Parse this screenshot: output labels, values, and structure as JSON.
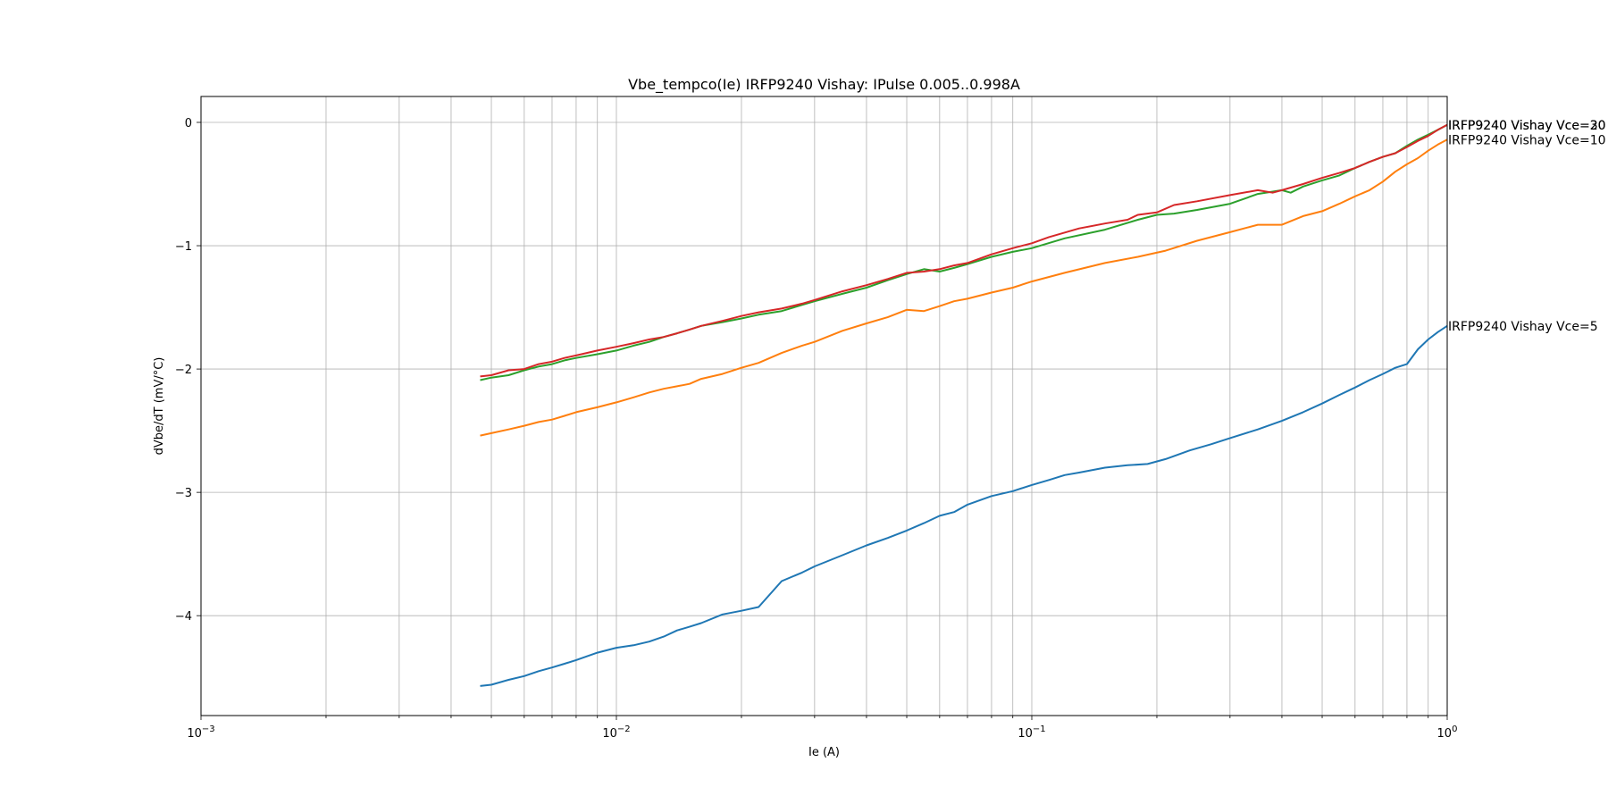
{
  "chart_data": {
    "type": "line",
    "title": "Vbe_tempco(Ie) IRFP9240 Vishay: IPulse 0.005..0.998A",
    "xlabel": "Ie (A)",
    "ylabel": "dVbe/dT (mV/°C)",
    "xscale": "log",
    "xlim": [
      0.001,
      1.0
    ],
    "ylim": [
      -4.81,
      0.21
    ],
    "xticks": [
      {
        "value": 0.001,
        "base": "10",
        "exp": "−3"
      },
      {
        "value": 0.01,
        "base": "10",
        "exp": "−2"
      },
      {
        "value": 0.1,
        "base": "10",
        "exp": "−1"
      },
      {
        "value": 1.0,
        "base": "10",
        "exp": "0"
      }
    ],
    "yticks": [
      {
        "value": 0,
        "label": "0"
      },
      {
        "value": -1,
        "label": "−1"
      },
      {
        "value": -2,
        "label": "−2"
      },
      {
        "value": -3,
        "label": "−3"
      },
      {
        "value": -4,
        "label": "−4"
      }
    ],
    "grid": true,
    "series": [
      {
        "name": "IRFP9240 Vishay Vce=5",
        "color": "#1f77b4",
        "x": [
          0.0047,
          0.005,
          0.0055,
          0.006,
          0.0065,
          0.007,
          0.0075,
          0.008,
          0.009,
          0.01,
          0.011,
          0.012,
          0.013,
          0.014,
          0.015,
          0.016,
          0.018,
          0.02,
          0.022,
          0.025,
          0.028,
          0.03,
          0.035,
          0.04,
          0.045,
          0.05,
          0.055,
          0.06,
          0.065,
          0.07,
          0.08,
          0.09,
          0.1,
          0.11,
          0.12,
          0.13,
          0.15,
          0.17,
          0.19,
          0.21,
          0.24,
          0.27,
          0.3,
          0.35,
          0.4,
          0.45,
          0.5,
          0.55,
          0.6,
          0.65,
          0.7,
          0.75,
          0.8,
          0.85,
          0.9,
          0.95,
          1.0
        ],
        "y": [
          -4.57,
          -4.56,
          -4.52,
          -4.49,
          -4.45,
          -4.42,
          -4.39,
          -4.36,
          -4.3,
          -4.26,
          -4.24,
          -4.21,
          -4.17,
          -4.12,
          -4.09,
          -4.06,
          -3.99,
          -3.96,
          -3.93,
          -3.72,
          -3.65,
          -3.6,
          -3.51,
          -3.43,
          -3.37,
          -3.31,
          -3.25,
          -3.19,
          -3.16,
          -3.1,
          -3.03,
          -2.99,
          -2.94,
          -2.9,
          -2.86,
          -2.84,
          -2.8,
          -2.78,
          -2.77,
          -2.73,
          -2.66,
          -2.61,
          -2.56,
          -2.49,
          -2.42,
          -2.35,
          -2.28,
          -2.21,
          -2.15,
          -2.09,
          -2.04,
          -1.99,
          -1.96,
          -1.84,
          -1.76,
          -1.7,
          -1.65
        ]
      },
      {
        "name": "IRFP9240 Vishay Vce=10",
        "color": "#ff7f0e",
        "x": [
          0.0047,
          0.005,
          0.0055,
          0.006,
          0.0065,
          0.007,
          0.0075,
          0.008,
          0.009,
          0.01,
          0.011,
          0.012,
          0.013,
          0.014,
          0.015,
          0.016,
          0.018,
          0.02,
          0.022,
          0.025,
          0.028,
          0.03,
          0.035,
          0.04,
          0.045,
          0.05,
          0.055,
          0.06,
          0.065,
          0.07,
          0.08,
          0.09,
          0.1,
          0.12,
          0.15,
          0.18,
          0.21,
          0.25,
          0.3,
          0.35,
          0.4,
          0.45,
          0.5,
          0.55,
          0.6,
          0.65,
          0.7,
          0.75,
          0.8,
          0.85,
          0.9,
          0.95,
          1.0
        ],
        "y": [
          -2.54,
          -2.52,
          -2.49,
          -2.46,
          -2.43,
          -2.41,
          -2.38,
          -2.35,
          -2.31,
          -2.27,
          -2.23,
          -2.19,
          -2.16,
          -2.14,
          -2.12,
          -2.08,
          -2.04,
          -1.99,
          -1.95,
          -1.87,
          -1.81,
          -1.78,
          -1.69,
          -1.63,
          -1.58,
          -1.52,
          -1.53,
          -1.49,
          -1.45,
          -1.43,
          -1.38,
          -1.34,
          -1.29,
          -1.22,
          -1.14,
          -1.09,
          -1.04,
          -0.96,
          -0.89,
          -0.83,
          -0.83,
          -0.76,
          -0.72,
          -0.66,
          -0.6,
          -0.55,
          -0.48,
          -0.4,
          -0.34,
          -0.29,
          -0.23,
          -0.18,
          -0.14
        ]
      },
      {
        "name": "IRFP9240 Vishay Vce=20",
        "color": "#2ca02c",
        "x": [
          0.0047,
          0.005,
          0.0055,
          0.006,
          0.0065,
          0.007,
          0.0075,
          0.008,
          0.009,
          0.01,
          0.011,
          0.012,
          0.013,
          0.014,
          0.015,
          0.016,
          0.018,
          0.02,
          0.022,
          0.025,
          0.028,
          0.03,
          0.035,
          0.04,
          0.045,
          0.05,
          0.055,
          0.06,
          0.065,
          0.07,
          0.08,
          0.09,
          0.1,
          0.12,
          0.15,
          0.18,
          0.2,
          0.22,
          0.25,
          0.3,
          0.35,
          0.4,
          0.42,
          0.45,
          0.5,
          0.55,
          0.6,
          0.65,
          0.7,
          0.75,
          0.8,
          0.85,
          0.9,
          0.95,
          1.0
        ],
        "y": [
          -2.09,
          -2.07,
          -2.05,
          -2.01,
          -1.98,
          -1.96,
          -1.93,
          -1.91,
          -1.88,
          -1.85,
          -1.81,
          -1.78,
          -1.74,
          -1.71,
          -1.68,
          -1.65,
          -1.62,
          -1.59,
          -1.56,
          -1.53,
          -1.48,
          -1.45,
          -1.39,
          -1.34,
          -1.28,
          -1.23,
          -1.19,
          -1.21,
          -1.18,
          -1.15,
          -1.09,
          -1.05,
          -1.02,
          -0.94,
          -0.87,
          -0.79,
          -0.75,
          -0.74,
          -0.71,
          -0.66,
          -0.58,
          -0.55,
          -0.57,
          -0.52,
          -0.47,
          -0.43,
          -0.37,
          -0.32,
          -0.28,
          -0.25,
          -0.19,
          -0.14,
          -0.1,
          -0.06,
          -0.02
        ]
      },
      {
        "name": "IRFP9240 Vishay Vce=30",
        "color": "#d62728",
        "x": [
          0.0047,
          0.005,
          0.0055,
          0.006,
          0.0065,
          0.007,
          0.0075,
          0.008,
          0.009,
          0.01,
          0.011,
          0.012,
          0.013,
          0.014,
          0.015,
          0.016,
          0.018,
          0.02,
          0.022,
          0.025,
          0.028,
          0.03,
          0.035,
          0.04,
          0.045,
          0.05,
          0.055,
          0.06,
          0.065,
          0.07,
          0.08,
          0.09,
          0.1,
          0.11,
          0.13,
          0.15,
          0.17,
          0.18,
          0.2,
          0.22,
          0.25,
          0.3,
          0.35,
          0.38,
          0.4,
          0.45,
          0.5,
          0.55,
          0.6,
          0.65,
          0.7,
          0.75,
          0.8,
          0.85,
          0.9,
          0.95,
          1.0
        ],
        "y": [
          -2.06,
          -2.05,
          -2.01,
          -2.0,
          -1.96,
          -1.94,
          -1.91,
          -1.89,
          -1.85,
          -1.82,
          -1.79,
          -1.76,
          -1.74,
          -1.71,
          -1.68,
          -1.65,
          -1.61,
          -1.57,
          -1.54,
          -1.51,
          -1.47,
          -1.44,
          -1.37,
          -1.32,
          -1.27,
          -1.22,
          -1.21,
          -1.19,
          -1.16,
          -1.14,
          -1.07,
          -1.02,
          -0.98,
          -0.93,
          -0.86,
          -0.82,
          -0.79,
          -0.75,
          -0.73,
          -0.67,
          -0.64,
          -0.59,
          -0.55,
          -0.57,
          -0.55,
          -0.5,
          -0.45,
          -0.41,
          -0.37,
          -0.32,
          -0.28,
          -0.25,
          -0.2,
          -0.15,
          -0.11,
          -0.06,
          -0.02
        ]
      }
    ]
  }
}
